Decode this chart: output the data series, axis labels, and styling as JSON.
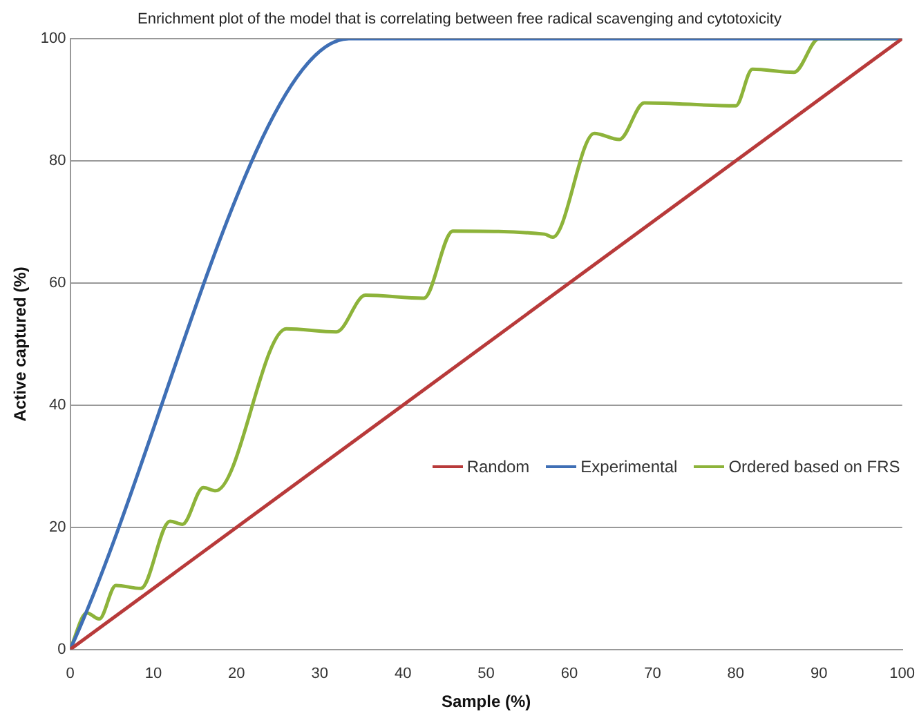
{
  "chart_data": {
    "type": "line",
    "title": "Enrichment plot of the model that is correlating between free radical scavenging  and cytotoxicity",
    "xlabel": "Sample (%)",
    "ylabel": "Active captured (%)",
    "xlim": [
      0,
      100
    ],
    "ylim": [
      0,
      100
    ],
    "xticks": [
      0,
      10,
      20,
      30,
      40,
      50,
      60,
      70,
      80,
      90,
      100
    ],
    "yticks": [
      0,
      20,
      40,
      60,
      80,
      100
    ],
    "grid": "y",
    "legend": "right",
    "marker": "none",
    "line_style": "solid",
    "series": [
      {
        "name": "Random",
        "color": "#b83a3a",
        "x": [
          0,
          100
        ],
        "values": [
          0,
          100
        ]
      },
      {
        "name": "Experimental",
        "color": "#3f6fb5",
        "x": [
          0,
          33.5,
          100
        ],
        "values": [
          0,
          100,
          100
        ]
      },
      {
        "name": "Ordered based on FRS",
        "color": "#8db33a",
        "x": [
          0,
          2,
          3.5,
          5.5,
          8.5,
          12,
          13.5,
          16,
          17.5,
          26,
          32,
          35.5,
          42.5,
          46,
          57,
          58,
          63,
          66,
          69,
          80,
          82,
          87,
          90,
          100
        ],
        "values": [
          0,
          6,
          5,
          10.5,
          10,
          21,
          20.5,
          26.5,
          26,
          52.5,
          52,
          58,
          57.5,
          68.5,
          68,
          67.5,
          84.5,
          83.5,
          89.5,
          89,
          95,
          94.5,
          100,
          100
        ]
      }
    ]
  }
}
